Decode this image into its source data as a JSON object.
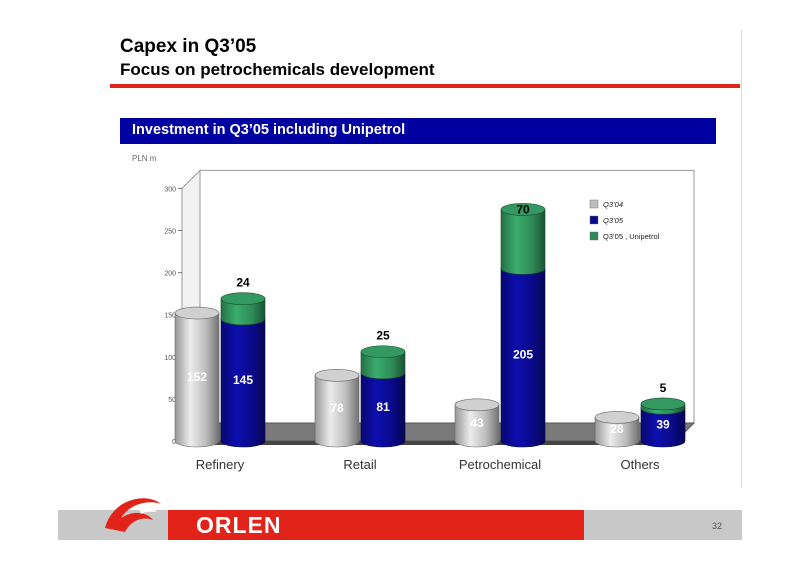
{
  "slide": {
    "title": "Capex in Q3’05",
    "subtitle": "Focus on petrochemicals development",
    "banner": "Investment in Q3’05 including Unipetrol",
    "units": "PLN m",
    "page_number": "32",
    "logo_text": "ORLEN"
  },
  "colors": {
    "accent_red": "#e2231a",
    "banner_blue": "#0000a0",
    "q304": "#bdbdbd",
    "q305": "#0a0a8c",
    "unipetrol": "#2e8b57"
  },
  "chart_data": {
    "type": "bar",
    "stacked": true,
    "style": "3d-cylinder",
    "categories": [
      "Refinery",
      "Retail",
      "Petrochemical",
      "Others"
    ],
    "ylim": [
      0,
      300
    ],
    "yticks": [
      "0",
      "50",
      "100",
      "150",
      "200",
      "250",
      "300"
    ],
    "grid": false,
    "legend": "top-right",
    "series": [
      {
        "name": "Q3’04",
        "values": [
          152,
          78,
          43,
          28
        ],
        "labels": [
          "152",
          "78",
          "43",
          "28"
        ]
      },
      {
        "name": "Q3’05",
        "values": [
          145,
          81,
          205,
          39
        ],
        "labels": [
          "145",
          "81",
          "205",
          "39"
        ]
      },
      {
        "name": "Q3’05 , Unipetrol",
        "values": [
          24,
          25,
          70,
          5
        ],
        "labels": [
          "24",
          "25",
          "70",
          "5"
        ]
      }
    ]
  }
}
